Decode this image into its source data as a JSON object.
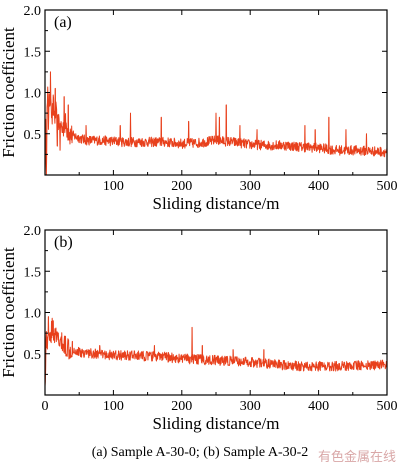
{
  "chart_data": [
    {
      "type": "line",
      "panel_label": "(a)",
      "xlabel": "Sliding distance/m",
      "ylabel": "Friction coefficient",
      "xlim": [
        0,
        500
      ],
      "ylim": [
        0,
        2.0
      ],
      "xticks": [
        "100",
        "200",
        "300",
        "400",
        "500"
      ],
      "xtick_values": [
        100,
        200,
        300,
        400,
        500
      ],
      "yticks": [
        "0.5",
        "1.0",
        "1.5",
        "2.0"
      ],
      "ytick_values": [
        0.5,
        1.0,
        1.5,
        2.0
      ],
      "color": "#e8401c",
      "series": [
        {
          "x": [
            0,
            1,
            2,
            3,
            4,
            5,
            6,
            7,
            8,
            10,
            12,
            14,
            16,
            18,
            20,
            25,
            30,
            35,
            40,
            50,
            60,
            80,
            100,
            120,
            150,
            175,
            200,
            225,
            250,
            275,
            300,
            325,
            350,
            375,
            400,
            425,
            450,
            475,
            500
          ],
          "y": [
            0.15,
            0.55,
            0.05,
            0.75,
            0.95,
            0.6,
            1.05,
            0.7,
            1.2,
            0.65,
            0.85,
            0.7,
            0.75,
            0.6,
            0.68,
            0.55,
            0.62,
            0.5,
            0.48,
            0.45,
            0.42,
            0.42,
            0.41,
            0.4,
            0.4,
            0.4,
            0.38,
            0.39,
            0.42,
            0.4,
            0.37,
            0.36,
            0.36,
            0.34,
            0.33,
            0.3,
            0.3,
            0.29,
            0.28
          ]
        }
      ],
      "spikes": [
        {
          "x": 8,
          "y": 1.25
        },
        {
          "x": 15,
          "y": 1.05
        },
        {
          "x": 18,
          "y": 0.35
        },
        {
          "x": 22,
          "y": 0.3
        },
        {
          "x": 28,
          "y": 0.95
        },
        {
          "x": 34,
          "y": 0.85
        },
        {
          "x": 60,
          "y": 0.6
        },
        {
          "x": 110,
          "y": 0.6
        },
        {
          "x": 125,
          "y": 0.75
        },
        {
          "x": 170,
          "y": 0.7
        },
        {
          "x": 210,
          "y": 0.65
        },
        {
          "x": 250,
          "y": 0.75
        },
        {
          "x": 255,
          "y": 0.7
        },
        {
          "x": 265,
          "y": 0.85
        },
        {
          "x": 285,
          "y": 0.6
        },
        {
          "x": 310,
          "y": 0.55
        },
        {
          "x": 380,
          "y": 0.6
        },
        {
          "x": 395,
          "y": 0.55
        },
        {
          "x": 415,
          "y": 0.7
        },
        {
          "x": 440,
          "y": 0.55
        },
        {
          "x": 470,
          "y": 0.5
        }
      ]
    },
    {
      "type": "line",
      "panel_label": "(b)",
      "xlabel": "Sliding distance/m",
      "ylabel": "Friction coefficient",
      "xlim": [
        0,
        500
      ],
      "ylim": [
        0,
        2.0
      ],
      "xticks": [
        "0",
        "100",
        "200",
        "300",
        "400",
        "500"
      ],
      "xtick_values": [
        0,
        100,
        200,
        300,
        400,
        500
      ],
      "yticks": [
        "0.5",
        "1.0",
        "1.5",
        "2.0"
      ],
      "ytick_values": [
        0.5,
        1.0,
        1.5,
        2.0
      ],
      "color": "#e8401c",
      "series": [
        {
          "x": [
            0,
            1,
            2,
            3,
            5,
            8,
            10,
            15,
            20,
            25,
            30,
            40,
            50,
            75,
            100,
            125,
            150,
            175,
            200,
            225,
            250,
            275,
            300,
            325,
            350,
            375,
            400,
            425,
            450,
            475,
            500
          ],
          "y": [
            0.1,
            0.45,
            0.75,
            0.6,
            0.85,
            0.7,
            0.8,
            0.7,
            0.65,
            0.62,
            0.6,
            0.55,
            0.52,
            0.5,
            0.48,
            0.48,
            0.47,
            0.46,
            0.44,
            0.43,
            0.42,
            0.41,
            0.4,
            0.38,
            0.36,
            0.35,
            0.35,
            0.35,
            0.36,
            0.36,
            0.37
          ]
        }
      ],
      "spikes": [
        {
          "x": 5,
          "y": 0.95
        },
        {
          "x": 12,
          "y": 0.9
        },
        {
          "x": 40,
          "y": 0.65
        },
        {
          "x": 80,
          "y": 0.6
        },
        {
          "x": 160,
          "y": 0.6
        },
        {
          "x": 215,
          "y": 0.82
        },
        {
          "x": 230,
          "y": 0.6
        },
        {
          "x": 275,
          "y": 0.55
        },
        {
          "x": 320,
          "y": 0.55
        }
      ]
    }
  ],
  "caption": "(a) Sample A-30-0; (b) Sample A-30-2",
  "watermark": "有色金属在线"
}
